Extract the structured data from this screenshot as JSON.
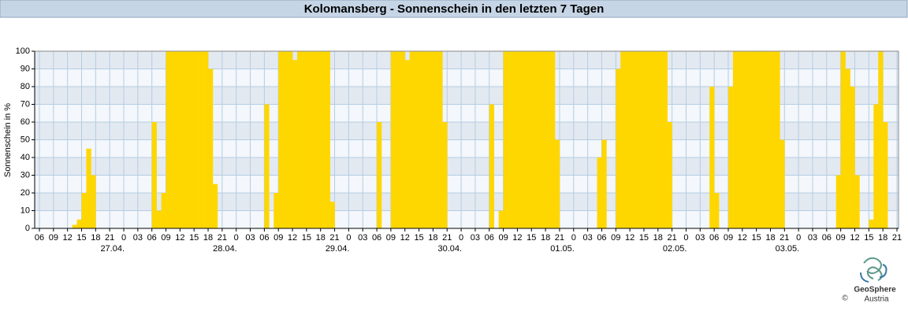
{
  "chart_data": {
    "type": "bar",
    "title": "Kolomansberg - Sonnenschein in den letzten 7 Tagen",
    "y_label": "Sonnenschein in %",
    "categories": [
      "06",
      null,
      null,
      "09",
      null,
      null,
      "12",
      null,
      null,
      "15",
      null,
      null,
      "18",
      null,
      null,
      "21",
      null,
      null,
      "0",
      null,
      null,
      "03",
      null,
      null,
      "06",
      null,
      null,
      "09",
      null,
      null,
      "12",
      null,
      null,
      "15",
      null,
      null,
      "18",
      null,
      null,
      "21",
      null,
      null,
      "0",
      null,
      null,
      "03",
      null,
      null,
      "06",
      null,
      null,
      "09",
      null,
      null,
      "12",
      null,
      null,
      "15",
      null,
      null,
      "18",
      null,
      null,
      "21",
      null,
      null,
      "0",
      null,
      null,
      "03",
      null,
      null,
      "06",
      null,
      null,
      "09",
      null,
      null,
      "12",
      null,
      null,
      "15",
      null,
      null,
      "18",
      null,
      null,
      "21",
      null,
      null,
      "0",
      null,
      null,
      "03",
      null,
      null,
      "06",
      null,
      null,
      "09",
      null,
      null,
      "12",
      null,
      null,
      "15",
      null,
      null,
      "18",
      null,
      null,
      "21",
      null,
      null,
      "0",
      null,
      null,
      "03",
      null,
      null,
      "06",
      null,
      null,
      "09",
      null,
      null,
      "12",
      null,
      null,
      "15",
      null,
      null,
      "18",
      null,
      null,
      "21",
      null,
      null,
      "0",
      null,
      null,
      "03",
      null,
      null,
      "06",
      null,
      null,
      "09",
      null,
      null,
      "12",
      null,
      null,
      "15",
      null,
      null,
      "18",
      null,
      null,
      "21",
      null,
      null,
      "0",
      null,
      null,
      "03",
      null,
      null,
      "06",
      null,
      null,
      "09",
      null,
      null,
      "12",
      null,
      null,
      "15",
      null,
      null,
      "18",
      null,
      null,
      "21"
    ],
    "values": [
      0,
      0,
      0,
      0,
      0,
      0,
      0,
      2,
      5,
      20,
      45,
      30,
      0,
      0,
      0,
      0,
      0,
      0,
      0,
      0,
      0,
      0,
      0,
      0,
      60,
      10,
      20,
      100,
      100,
      100,
      100,
      100,
      100,
      100,
      100,
      100,
      90,
      25,
      0,
      0,
      0,
      0,
      0,
      0,
      0,
      0,
      0,
      0,
      70,
      0,
      20,
      100,
      100,
      100,
      95,
      100,
      100,
      100,
      100,
      100,
      100,
      100,
      15,
      0,
      0,
      0,
      0,
      0,
      0,
      0,
      0,
      0,
      60,
      0,
      0,
      100,
      100,
      100,
      95,
      100,
      100,
      100,
      100,
      100,
      100,
      100,
      60,
      0,
      0,
      0,
      0,
      0,
      0,
      0,
      0,
      0,
      70,
      0,
      10,
      100,
      100,
      100,
      100,
      100,
      100,
      100,
      100,
      100,
      100,
      100,
      50,
      0,
      0,
      0,
      0,
      0,
      0,
      0,
      0,
      40,
      50,
      0,
      0,
      90,
      100,
      100,
      100,
      100,
      100,
      100,
      100,
      100,
      100,
      100,
      60,
      0,
      0,
      0,
      0,
      0,
      0,
      0,
      0,
      80,
      20,
      0,
      0,
      80,
      100,
      100,
      100,
      100,
      100,
      100,
      100,
      100,
      100,
      100,
      50,
      0,
      0,
      0,
      0,
      0,
      0,
      0,
      0,
      0,
      0,
      0,
      30,
      100,
      90,
      80,
      30,
      0,
      0,
      5,
      70,
      100,
      60,
      0,
      0,
      0
    ],
    "date_labels": [
      "27.04.",
      "28.04.",
      "29.04.",
      "30.04.",
      "01.05.",
      "02.05.",
      "03.05."
    ],
    "color": "#ffd700",
    "ylim": [
      0,
      100
    ],
    "yticks": [
      0,
      10,
      20,
      30,
      40,
      50,
      60,
      70,
      80,
      90,
      100
    ],
    "grid": true
  },
  "logo": {
    "name": "GeoSphere",
    "sub": "Austria",
    "copyright": "©"
  }
}
